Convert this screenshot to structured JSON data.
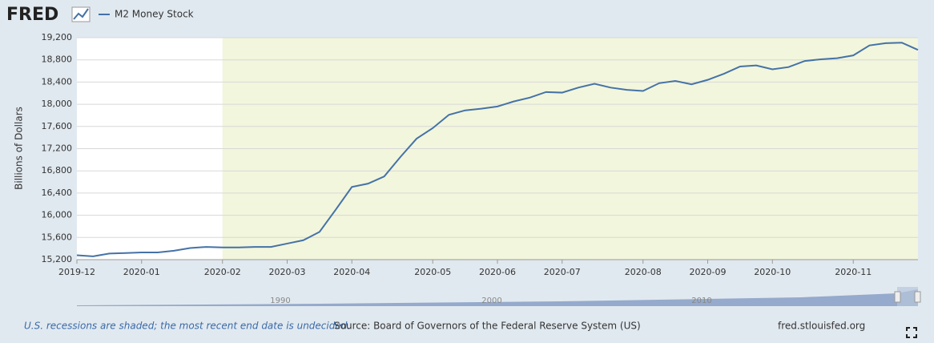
{
  "header": {
    "logo": "FRED"
  },
  "chart_data": {
    "type": "line",
    "y_label": "Billions of Dollars",
    "categories": [
      "2019-12",
      null,
      null,
      null,
      "2020-01",
      null,
      null,
      null,
      null,
      "2020-02",
      null,
      null,
      null,
      "2020-03",
      null,
      null,
      null,
      "2020-04",
      null,
      null,
      null,
      null,
      "2020-05",
      null,
      null,
      null,
      "2020-06",
      null,
      null,
      null,
      "2020-07",
      null,
      null,
      null,
      null,
      "2020-08",
      null,
      null,
      null,
      "2020-09",
      null,
      null,
      null,
      "2020-10",
      null,
      null,
      null,
      null,
      "2020-11",
      null,
      null,
      null,
      null
    ],
    "series": [
      {
        "name": "M2 Money Stock",
        "color": "#4572a7",
        "values": [
          15280,
          15260,
          15310,
          15320,
          15330,
          15330,
          15360,
          15410,
          15430,
          15420,
          15420,
          15430,
          15430,
          15490,
          15550,
          15700,
          16100,
          16510,
          16570,
          16700,
          17050,
          17380,
          17570,
          17810,
          17890,
          17920,
          17960,
          18050,
          18120,
          18220,
          18210,
          18300,
          18370,
          18300,
          18260,
          18240,
          18380,
          18420,
          18360,
          18440,
          18550,
          18680,
          18700,
          18630,
          18670,
          18780,
          18810,
          18830,
          18880,
          19060,
          19100,
          19110,
          18980
        ]
      }
    ],
    "ylim": [
      15200,
      19200
    ],
    "yticks": [
      {
        "value": 15200,
        "label": "15,200"
      },
      {
        "value": 15600,
        "label": "15,600"
      },
      {
        "value": 16000,
        "label": "16,000"
      },
      {
        "value": 16400,
        "label": "16,400"
      },
      {
        "value": 16800,
        "label": "16,800"
      },
      {
        "value": 17200,
        "label": "17,200"
      },
      {
        "value": 17600,
        "label": "17,600"
      },
      {
        "value": 18000,
        "label": "18,000"
      },
      {
        "value": 18400,
        "label": "18,400"
      },
      {
        "value": 18800,
        "label": "18,800"
      },
      {
        "value": 19200,
        "label": "19,200"
      }
    ],
    "grid": true,
    "recession_start": "2020-02",
    "navigator_labels": [
      "1990",
      "2000",
      "2010"
    ]
  },
  "footer": {
    "note": "U.S. recessions are shaded; the most recent end date is undecided.",
    "source": "Source: Board of Governors of the Federal Reserve System (US)",
    "site": "fred.stlouisfed.org"
  }
}
